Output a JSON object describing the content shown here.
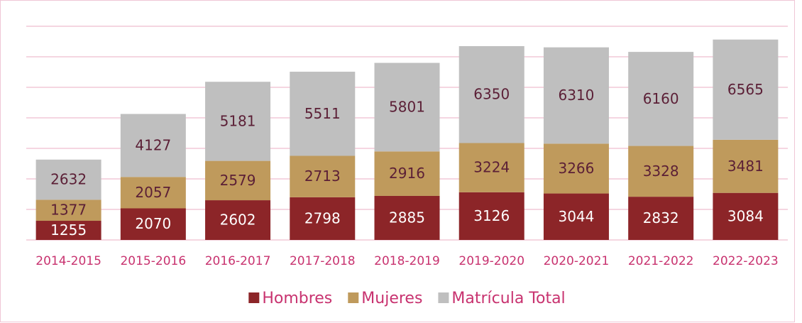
{
  "chart_data": {
    "type": "stacked_bar",
    "categories": [
      "2014-2015",
      "2015-2016",
      "2016-2017",
      "2017-2018",
      "2018-2019",
      "2019-2020",
      "2020-2021",
      "2021-2022",
      "2022-2023"
    ],
    "series": [
      {
        "name": "Hombres",
        "color": "#8c2528",
        "values": [
          1255,
          2070,
          2602,
          2798,
          2885,
          3126,
          3044,
          2832,
          3084
        ]
      },
      {
        "name": "Mujeres",
        "color": "#bf9a5c",
        "values": [
          1377,
          2057,
          2579,
          2713,
          2916,
          3224,
          3266,
          3328,
          3481
        ]
      },
      {
        "name": "Matrícula Total",
        "color": "#bfbfbf",
        "values": [
          2632,
          4127,
          5181,
          5511,
          5801,
          6350,
          6310,
          6160,
          6565
        ]
      }
    ],
    "ylim": [
      0,
      14000
    ],
    "yticks": [
      0,
      2000,
      4000,
      6000,
      8000,
      10000,
      12000,
      14000
    ],
    "grid": true,
    "legend": "bottom"
  }
}
